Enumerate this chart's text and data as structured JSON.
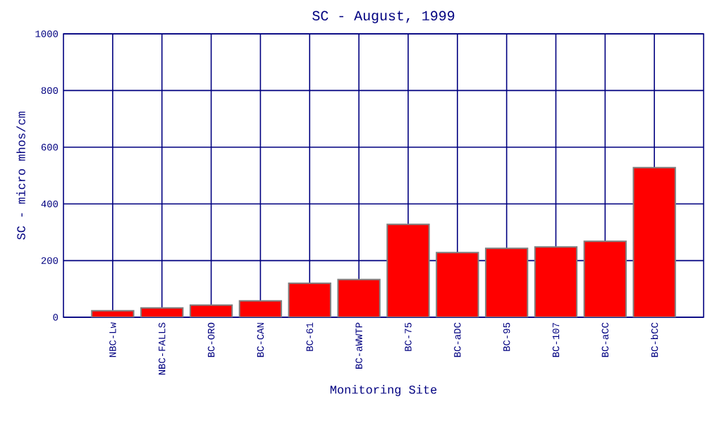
{
  "chart_data": {
    "type": "bar",
    "title": "SC - August, 1999",
    "xlabel": "Monitoring Site",
    "ylabel": "SC - micro mhos/cm",
    "categories": [
      "NBC-Lw",
      "NBC-FALLS",
      "BC-ORO",
      "BC-CAN",
      "BC-61",
      "BC-aWWTP",
      "BC-75",
      "BC-aDC",
      "BC-95",
      "BC-107",
      "BC-aCC",
      "BC-bCC"
    ],
    "values": [
      23,
      33,
      43,
      58,
      120,
      133,
      328,
      228,
      243,
      248,
      268,
      528
    ],
    "color": "#ff0000",
    "ylim": [
      0,
      1000
    ],
    "yticks": [
      0,
      200,
      400,
      600,
      800,
      1000
    ],
    "grid": true
  }
}
